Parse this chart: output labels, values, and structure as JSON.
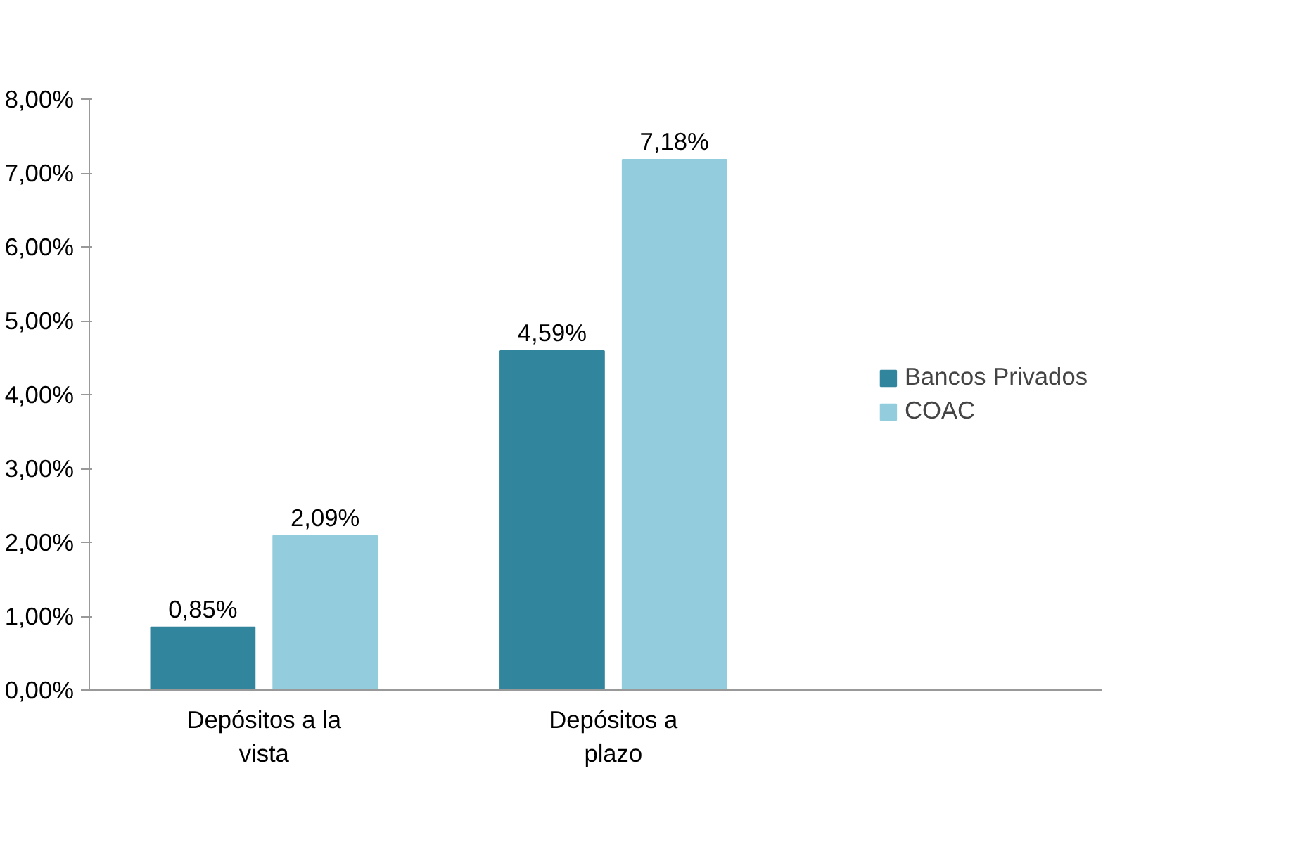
{
  "chart_data": {
    "type": "bar",
    "categories": [
      "Depósitos a la vista",
      "Depósitos a plazo"
    ],
    "series": [
      {
        "name": "Bancos Privados",
        "color": "#31859c",
        "values": [
          0.85,
          4.59
        ],
        "value_labels": [
          "0,85%",
          "4,59%"
        ]
      },
      {
        "name": "COAC",
        "color": "#93cddd",
        "values": [
          2.09,
          7.18
        ],
        "value_labels": [
          "2,09%",
          "7,18%"
        ]
      }
    ],
    "ylim": [
      0,
      8
    ],
    "yticks": [
      {
        "value": 0,
        "label": "0,00%"
      },
      {
        "value": 1,
        "label": "1,00%"
      },
      {
        "value": 2,
        "label": "2,00%"
      },
      {
        "value": 3,
        "label": "3,00%"
      },
      {
        "value": 4,
        "label": "4,00%"
      },
      {
        "value": 5,
        "label": "5,00%"
      },
      {
        "value": 6,
        "label": "6,00%"
      },
      {
        "value": 7,
        "label": "7,00%"
      },
      {
        "value": 8,
        "label": "8,00%"
      }
    ],
    "grid": false,
    "legend": "right"
  }
}
